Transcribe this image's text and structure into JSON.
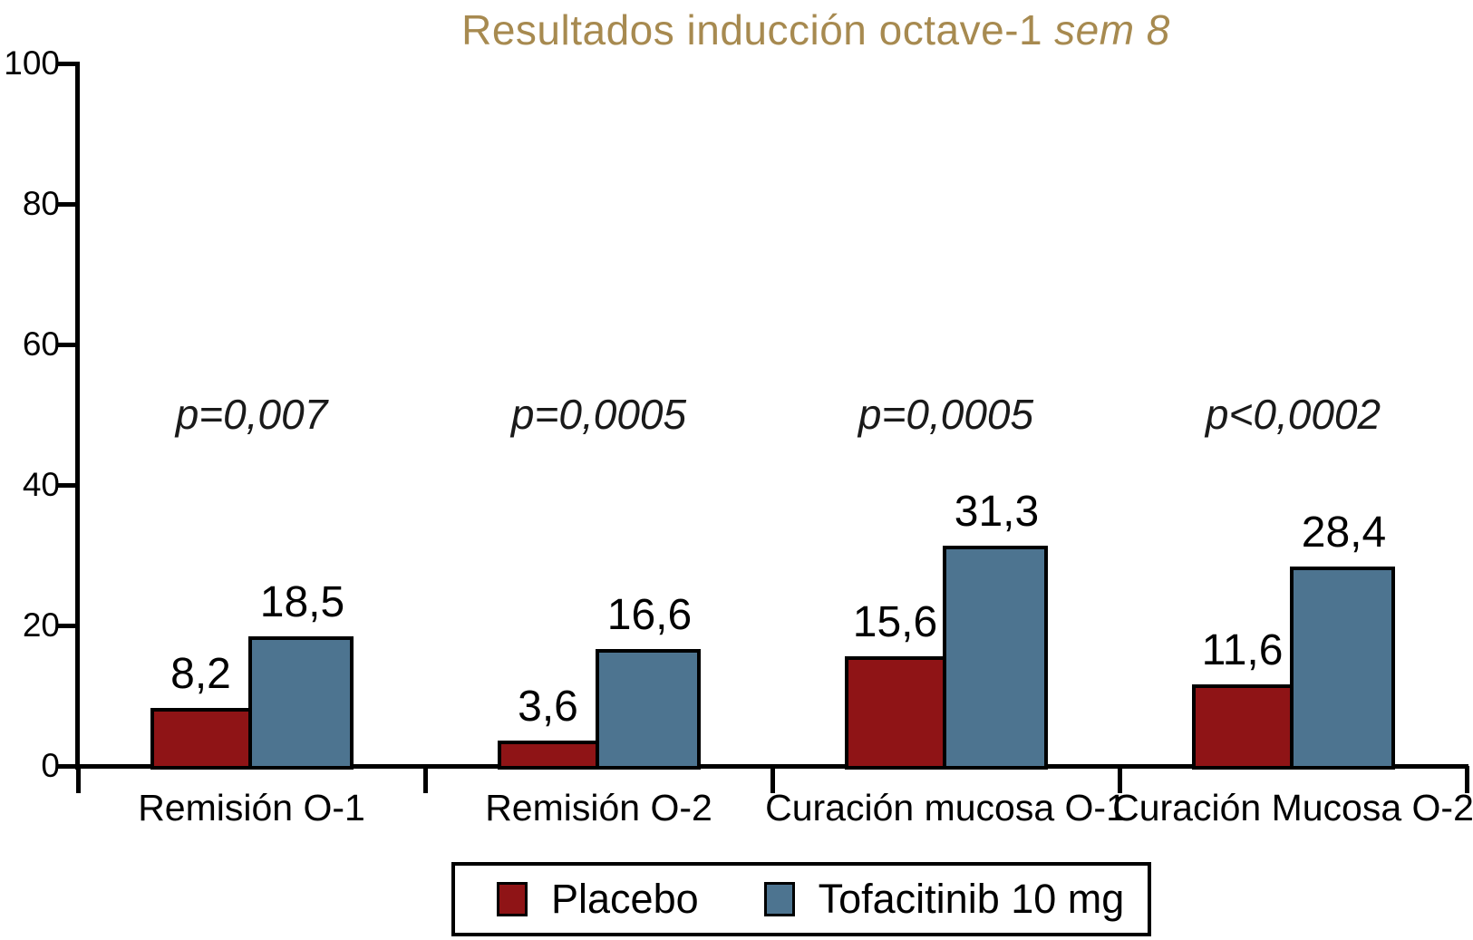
{
  "title": {
    "main": "Resultados inducción octave-1",
    "qualifier": "sem 8"
  },
  "colors": {
    "title": "#a78a50",
    "axis": "#000000",
    "bar_border": "#000000",
    "placebo": "#8f1416",
    "tofacitinib": "#4d7490",
    "background": "#ffffff"
  },
  "chart_data": {
    "type": "bar",
    "title": "Resultados inducción octave-1 sem 8",
    "categories": [
      "Remisión O-1",
      "Remisión O-2",
      "Curación mucosa O-1",
      "Curación Mucosa O-2"
    ],
    "series": [
      {
        "name": "Placebo",
        "color": "#8f1416",
        "values": [
          8.2,
          3.6,
          15.6,
          11.6
        ],
        "value_labels": [
          "8,2",
          "3,6",
          "15,6",
          "11,6"
        ]
      },
      {
        "name": "Tofacitinib 10 mg",
        "color": "#4d7490",
        "values": [
          18.5,
          16.6,
          31.3,
          28.4
        ],
        "value_labels": [
          "18,5",
          "16,6",
          "31,3",
          "28,4"
        ]
      }
    ],
    "p_values": [
      "p=0,007",
      "p=0,0005",
      "p=0,0005",
      "p<0,0002"
    ],
    "y_ticks": [
      0,
      20,
      40,
      60,
      80,
      100
    ],
    "ylim": [
      0,
      100
    ],
    "xlabel": "",
    "ylabel": "",
    "grid": false,
    "legend_position": "bottom"
  },
  "legend": {
    "items": [
      {
        "label": "Placebo",
        "color": "#8f1416"
      },
      {
        "label": "Tofacitinib 10 mg",
        "color": "#4d7490"
      }
    ]
  }
}
